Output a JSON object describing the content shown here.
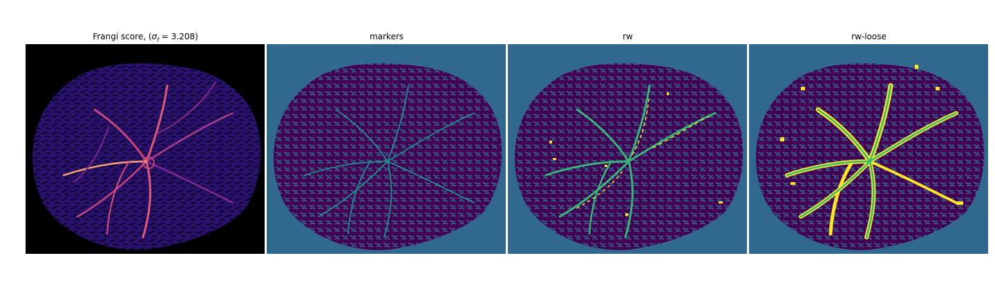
{
  "figure": {
    "panels": [
      {
        "id": "frangi",
        "title_prefix": "Frangi score, (",
        "title_sigma": "σ",
        "title_sub": "f",
        "title_suffix": " = 3.208)",
        "colormap": "magma",
        "background": "#000000",
        "region_color": "#2a1170",
        "highlight_colors": [
          "#7a2b8f",
          "#c9467a",
          "#f8a46b"
        ]
      },
      {
        "id": "markers",
        "title": "markers",
        "colormap": "viridis",
        "background": "#31688e",
        "region_color": "#440154",
        "highlight_colors": [
          "#21918c"
        ]
      },
      {
        "id": "rw",
        "title": "rw",
        "colormap": "viridis",
        "background": "#31688e",
        "region_color": "#440154",
        "highlight_colors": [
          "#35b779",
          "#fde725"
        ]
      },
      {
        "id": "rw-loose",
        "title": "rw-loose",
        "colormap": "viridis",
        "background": "#31688e",
        "region_color": "#440154",
        "highlight_colors": [
          "#35b779",
          "#fde725"
        ]
      }
    ]
  }
}
